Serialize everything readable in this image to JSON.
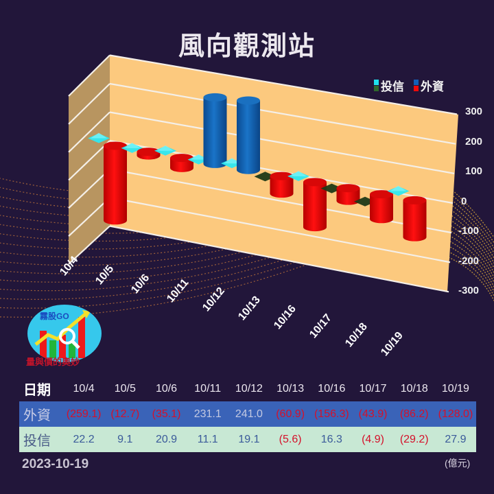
{
  "title": "風向觀測站",
  "legend": [
    {
      "label": "投信",
      "colors": [
        "#1fe3ee",
        "#2f6a2c"
      ]
    },
    {
      "label": "外資",
      "colors": [
        "#1060b8",
        "#ee0a0a"
      ]
    }
  ],
  "y_ticks": [
    "300",
    "200",
    "100",
    "0",
    "-100",
    "-200",
    "-300"
  ],
  "x_ticks": [
    "10/4",
    "10/5",
    "10/6",
    "10/11",
    "10/12",
    "10/13",
    "10/16",
    "10/17",
    "10/18",
    "10/19"
  ],
  "logo": {
    "text": "霧股GO",
    "subtitle": "量與價的奧妙"
  },
  "table": {
    "date_header": "日期",
    "foreign_header": "外資",
    "trust_header": "投信",
    "dates": [
      "10/4",
      "10/5",
      "10/6",
      "10/11",
      "10/12",
      "10/13",
      "10/16",
      "10/17",
      "10/18",
      "10/19"
    ],
    "foreign": [
      "(259.1)",
      "(12.7)",
      "(35.1)",
      "231.1",
      "241.0",
      "(60.9)",
      "(156.3)",
      "(43.9)",
      "(86.2)",
      "(128.0)"
    ],
    "trust": [
      "22.2",
      "9.1",
      "20.9",
      "11.1",
      "19.1",
      "(5.6)",
      "16.3",
      "(4.9)",
      "(29.2)",
      "27.9"
    ]
  },
  "footer": {
    "date": "2023-10-19",
    "unit": "(億元)"
  },
  "colors": {
    "background": "#22163a",
    "wall": "#fcc97e",
    "side_wall": "#b89560",
    "foreign_pos": "#1466b4",
    "foreign_neg": "#ee0a0a",
    "trust_pos": "#2ee8f0",
    "trust_neg": "#1e3a18"
  },
  "chart_data": {
    "type": "bar",
    "title": "風向觀測站",
    "categories": [
      "10/4",
      "10/5",
      "10/6",
      "10/11",
      "10/12",
      "10/13",
      "10/16",
      "10/17",
      "10/18",
      "10/19"
    ],
    "series": [
      {
        "name": "外資",
        "values": [
          -259.1,
          -12.7,
          -35.1,
          231.1,
          241.0,
          -60.9,
          -156.3,
          -43.9,
          -86.2,
          -128.0
        ]
      },
      {
        "name": "投信",
        "values": [
          22.2,
          9.1,
          20.9,
          11.1,
          19.1,
          -5.6,
          16.3,
          -4.9,
          -29.2,
          27.9
        ]
      }
    ],
    "xlabel": "",
    "ylabel": "億元",
    "ylim": [
      -300,
      300
    ],
    "yticks": [
      300,
      200,
      100,
      0,
      -100,
      -200,
      -300
    ],
    "grid": true,
    "legend_position": "top-right",
    "style": "3D cylinders (外資) and pyramids (投信)"
  }
}
